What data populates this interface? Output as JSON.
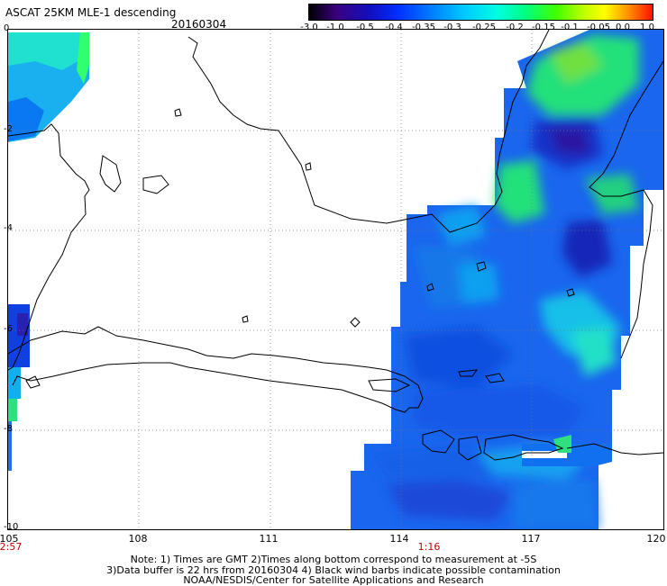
{
  "header": {
    "title": "ASCAT 25KM MLE-1 descending",
    "date": "20160304"
  },
  "colorbar": {
    "labels": [
      "-3.0",
      "-1.0",
      "-0.5",
      "-0.4",
      "-0.35",
      "-0.3",
      "-0.25",
      "-0.2",
      "-0.15",
      "-0.1",
      "-0.05",
      "0.0",
      "1.0"
    ],
    "colors": [
      "#2a0040",
      "#4a0090",
      "#1a1acc",
      "#0050ff",
      "#0090ff",
      "#00c8ff",
      "#00ffd0",
      "#00ff60",
      "#70ff00",
      "#ffff00",
      "#ffa000",
      "#ff3000"
    ]
  },
  "axes": {
    "lat_labels": [
      "0",
      "-2",
      "-4",
      "-6",
      "-8",
      "-10"
    ],
    "lon_labels": [
      "105",
      "108",
      "111",
      "114",
      "117",
      "120"
    ]
  },
  "times": {
    "left": "2:57",
    "center": "1:16"
  },
  "notes": {
    "line1": "Note: 1) Times are GMT 2)Times along bottom correspond to measurement at -5S",
    "line2": "3)Data buffer is 22 hrs from 20160304 4) Black wind barbs indicate possible contamination",
    "line3": "NOAA/NESDIS/Center for Satellite Applications and Research"
  }
}
